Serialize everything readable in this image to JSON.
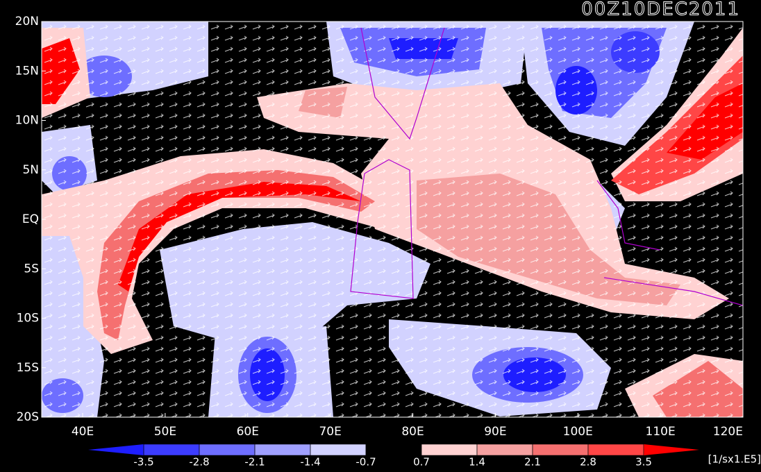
{
  "map": {
    "title": "00Z10DEC2011",
    "lat_labels": [
      "20N",
      "15N",
      "10N",
      "5N",
      "EQ",
      "5S",
      "10S",
      "15S",
      "20S"
    ],
    "lon_labels": [
      "40E",
      "50E",
      "60E",
      "70E",
      "80E",
      "90E",
      "100E",
      "110E",
      "120E"
    ],
    "colorbar": {
      "levels": [
        -3.5,
        -2.8,
        -2.1,
        -1.4,
        -0.7,
        0.7,
        1.4,
        2.1,
        2.8,
        3.5
      ],
      "colors": [
        "#1e1eff",
        "#3c3cff",
        "#6e6eff",
        "#a0a0ff",
        "#d2d2ff",
        "#000000",
        "#ffd2d2",
        "#f5a0a0",
        "#f57070",
        "#ff4646",
        "#ff0000"
      ],
      "unit": "[1/sx1.E5]"
    }
  }
}
